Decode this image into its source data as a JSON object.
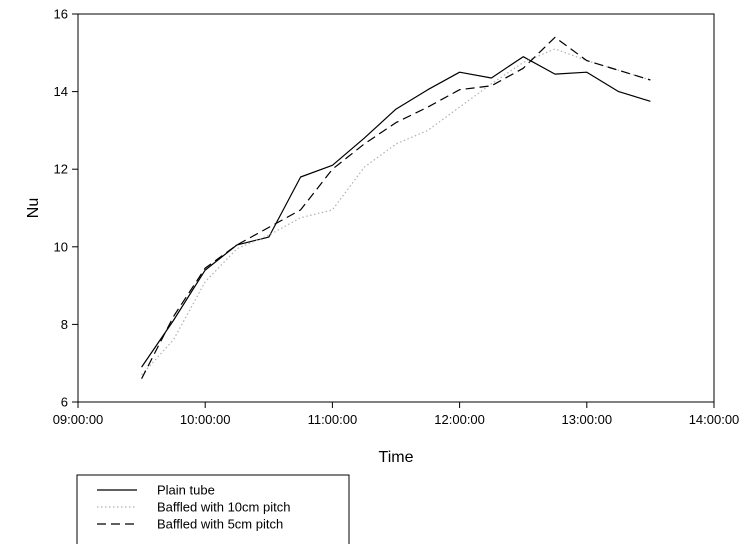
{
  "chart_data": {
    "type": "line",
    "xlabel": "Time",
    "ylabel": "Nu",
    "x_ticks": [
      "09:00:00",
      "10:00:00",
      "11:00:00",
      "12:00:00",
      "13:00:00",
      "14:00:00"
    ],
    "y_ticks": [
      "6",
      "8",
      "10",
      "12",
      "14",
      "16"
    ],
    "xlim": [
      "09:00:00",
      "14:00:00"
    ],
    "ylim": [
      6,
      16
    ],
    "grid": false,
    "legend_position": "below-left",
    "x": [
      "09:30:00",
      "09:45:00",
      "10:00:00",
      "10:15:00",
      "10:30:00",
      "10:45:00",
      "11:00:00",
      "11:15:00",
      "11:30:00",
      "11:45:00",
      "12:00:00",
      "12:15:00",
      "12:30:00",
      "12:45:00",
      "13:00:00",
      "13:15:00",
      "13:30:00"
    ],
    "series": [
      {
        "name": "Plain tube",
        "style": "solid",
        "values": [
          6.9,
          8.1,
          9.4,
          10.05,
          10.25,
          11.8,
          12.1,
          12.8,
          13.55,
          14.05,
          14.5,
          14.35,
          14.9,
          14.45,
          14.5,
          14.0,
          13.75
        ]
      },
      {
        "name": "Baffled with 10cm pitch",
        "style": "dotted",
        "values": [
          6.7,
          7.6,
          9.1,
          9.95,
          10.3,
          10.75,
          10.95,
          12.05,
          12.65,
          13.0,
          13.6,
          14.2,
          14.75,
          15.1,
          14.8,
          14.55,
          14.3
        ]
      },
      {
        "name": "Baffled with 5cm pitch",
        "style": "dashed",
        "values": [
          6.6,
          8.2,
          9.45,
          10.05,
          10.5,
          10.95,
          12.0,
          12.65,
          13.2,
          13.6,
          14.05,
          14.15,
          14.6,
          15.4,
          14.8,
          14.55,
          14.3
        ]
      }
    ]
  }
}
